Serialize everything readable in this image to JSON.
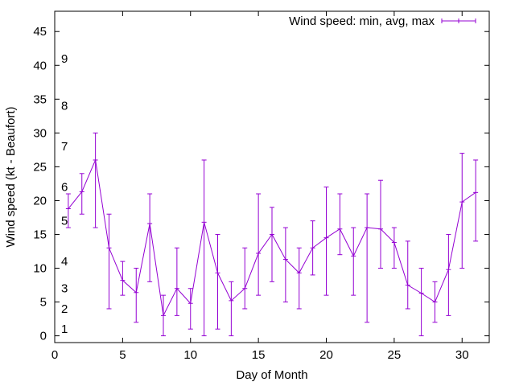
{
  "chart_data": {
    "type": "line",
    "xlabel": "Day of Month",
    "ylabel": "Wind speed (kt - Beaufort)",
    "xlim": [
      0,
      32
    ],
    "ylim": [
      -1,
      48
    ],
    "xticks": [
      0,
      5,
      10,
      15,
      20,
      25,
      30
    ],
    "yticks": [
      0,
      5,
      10,
      15,
      20,
      25,
      30,
      35,
      40,
      45
    ],
    "grid": false,
    "legend_position": "top-right",
    "colors": {
      "series": "#9400d3",
      "axis": "#000000"
    },
    "beaufort_labels": [
      {
        "label": "1",
        "value": 1
      },
      {
        "label": "2",
        "value": 4
      },
      {
        "label": "3",
        "value": 7
      },
      {
        "label": "4",
        "value": 11
      },
      {
        "label": "5",
        "value": 17
      },
      {
        "label": "6",
        "value": 22
      },
      {
        "label": "7",
        "value": 28
      },
      {
        "label": "8",
        "value": 34
      },
      {
        "label": "9",
        "value": 41
      }
    ],
    "series": [
      {
        "name": "Wind speed: min, avg, max",
        "x": [
          1,
          2,
          3,
          4,
          5,
          6,
          7,
          8,
          9,
          10,
          11,
          12,
          13,
          14,
          15,
          16,
          17,
          18,
          19,
          20,
          21,
          22,
          23,
          24,
          25,
          26,
          27,
          28,
          29,
          30,
          31
        ],
        "avg": [
          18.8,
          21.3,
          26.0,
          13.0,
          8.2,
          6.4,
          16.6,
          3.0,
          7.0,
          4.8,
          16.8,
          9.3,
          5.2,
          7.0,
          12.2,
          15.0,
          11.3,
          9.3,
          13.0,
          14.5,
          15.8,
          11.8,
          16.0,
          15.8,
          13.8,
          7.5,
          6.3,
          5.0,
          9.8,
          19.8,
          21.2
        ],
        "min": [
          16,
          18,
          16,
          4,
          6,
          2,
          8,
          0,
          3,
          1,
          0,
          1,
          0,
          4,
          6,
          8,
          5,
          4,
          9,
          6,
          12,
          6,
          2,
          10,
          10,
          4,
          0,
          2,
          3,
          10,
          14
        ],
        "max": [
          21,
          24,
          30,
          18,
          11,
          10,
          21,
          6,
          13,
          7,
          26,
          15,
          8,
          13,
          21,
          19,
          16,
          13,
          17,
          22,
          21,
          16,
          21,
          23,
          16,
          14,
          10,
          8,
          15,
          27,
          26
        ]
      }
    ]
  }
}
